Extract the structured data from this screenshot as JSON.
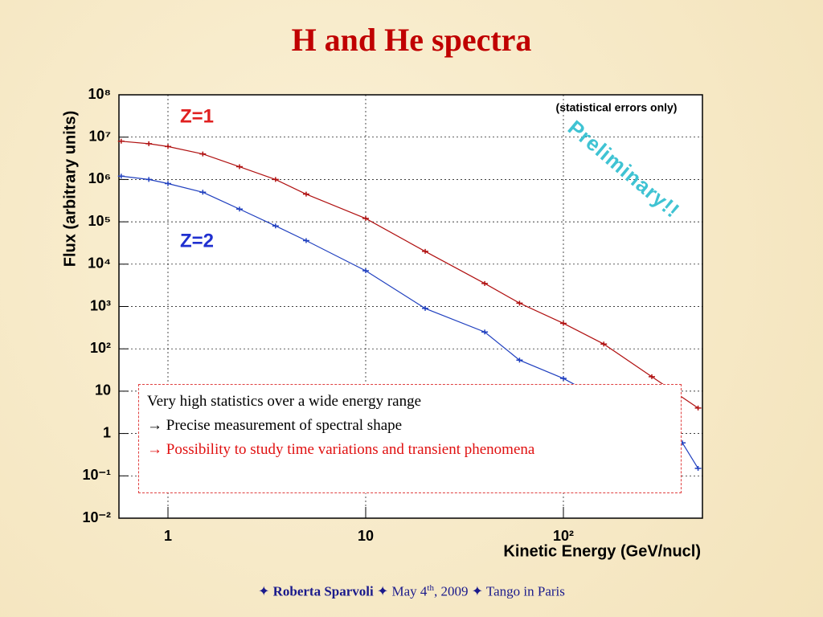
{
  "chart_data": {
    "type": "line",
    "title": "H and He spectra",
    "subtitle": "(statistical errors only)",
    "watermark": "Preliminary!!",
    "x_label": "Kinetic Energy (GeV/nucl)",
    "y_label": "Flux (arbitrary units)",
    "xscale": "log",
    "yscale": "log",
    "grid": true,
    "xlim": [
      0.565,
      505
    ],
    "ylim": [
      0.01,
      100000000
    ],
    "xticks": [
      1,
      10,
      {
        "value": 100,
        "label": "10²"
      }
    ],
    "yticks": [
      {
        "value": 0.01,
        "label": "10⁻²"
      },
      {
        "value": 0.1,
        "label": "10⁻¹"
      },
      1,
      10,
      {
        "value": 100,
        "label": "10²"
      },
      {
        "value": 1000,
        "label": "10³"
      },
      {
        "value": 10000,
        "label": "10⁴"
      },
      {
        "value": 100000,
        "label": "10⁵"
      },
      {
        "value": 1000000,
        "label": "10⁶"
      },
      {
        "value": 10000000,
        "label": "10⁷"
      },
      {
        "value": 100000000,
        "label": "10⁸"
      }
    ],
    "series": [
      {
        "name": "Z=1",
        "color": "#b01010",
        "x": [
          0.58,
          0.8,
          1,
          1.5,
          2.3,
          3.5,
          5,
          10,
          20,
          40,
          60,
          100,
          160,
          280,
          480
        ],
        "values": [
          8000000,
          7000000,
          6000000,
          4000000,
          2000000,
          1000000,
          450000,
          120000,
          20000,
          3500,
          1200,
          400,
          130,
          22,
          4
        ]
      },
      {
        "name": "Z=2",
        "color": "#1f3fbf",
        "x": [
          0.58,
          0.8,
          1,
          1.5,
          2.3,
          3.5,
          5,
          10,
          20,
          40,
          60,
          100,
          400,
          480
        ],
        "values": [
          1200000,
          1000000,
          800000,
          500000,
          200000,
          80000,
          36000,
          7000,
          900,
          250,
          54,
          20,
          0.6,
          0.15
        ]
      }
    ],
    "annotations": [
      {
        "text": "Very high statistics over a wide energy range",
        "color": "#000000"
      },
      {
        "text": "→ Precise measurement of spectral shape",
        "color": "#000000"
      },
      {
        "text": "→ Possibility to study time variations and transient phenomena",
        "color": "#e01010"
      }
    ]
  },
  "footer": {
    "separator": "✦",
    "author": "Roberta Sparvoli",
    "date": "May 4",
    "date_sup": "th",
    "year": ", 2009",
    "event": "Tango in Paris"
  }
}
